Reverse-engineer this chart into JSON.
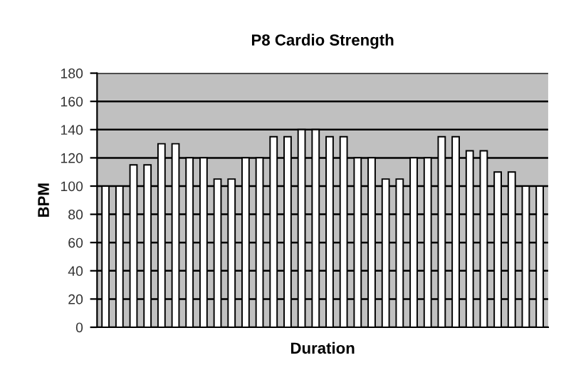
{
  "chart_data": {
    "type": "bar",
    "title": "P8 Cardio Strength",
    "xlabel": "Duration",
    "ylabel": "BPM",
    "categories": [
      null,
      null,
      null,
      null,
      null,
      null,
      null,
      null,
      null,
      null,
      null,
      null,
      null,
      null,
      null,
      null,
      null,
      null,
      null,
      null,
      null,
      null,
      null,
      null,
      null,
      null,
      null,
      null,
      null,
      null,
      null,
      null
    ],
    "values": [
      100,
      100,
      115,
      115,
      130,
      130,
      120,
      120,
      105,
      105,
      120,
      120,
      135,
      135,
      140,
      140,
      135,
      135,
      120,
      120,
      105,
      105,
      120,
      120,
      135,
      135,
      125,
      125,
      110,
      110,
      100,
      100
    ],
    "color": "#ffffff",
    "ylim": [
      0,
      180
    ],
    "yticks": [
      0,
      20,
      40,
      60,
      80,
      100,
      120,
      140,
      160,
      180
    ],
    "grid": "y"
  }
}
